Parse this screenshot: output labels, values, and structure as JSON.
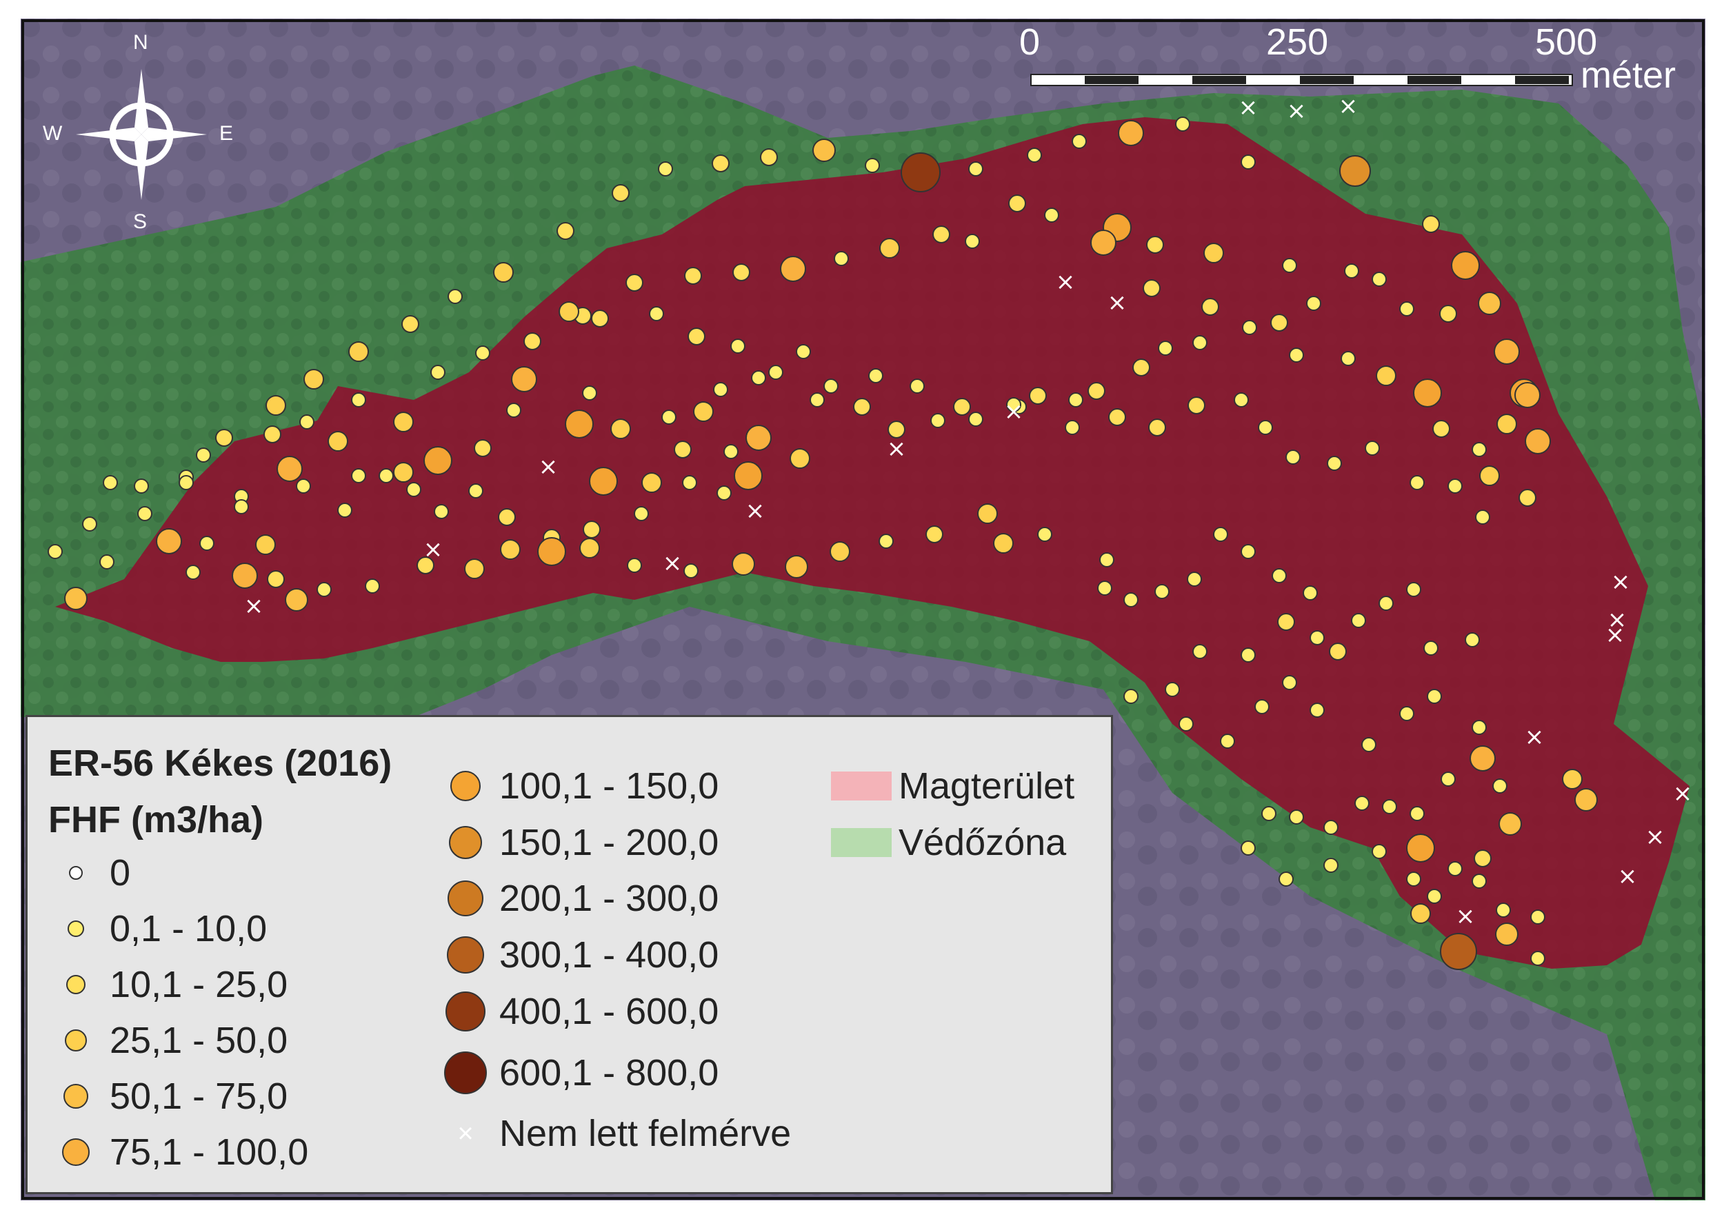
{
  "map": {
    "compass": {
      "n": "N",
      "e": "E",
      "s": "S",
      "w": "W"
    },
    "scale": {
      "ticks": [
        "0",
        "250",
        "500"
      ],
      "unit": "méter"
    }
  },
  "legend": {
    "title_line1": "ER-56 Kékes (2016)",
    "title_line2": "FHF (m3/ha)",
    "classes": [
      {
        "label": "0",
        "color": "#ffffff"
      },
      {
        "label": "0,1 - 10,0",
        "color": "#ffee6e"
      },
      {
        "label": "10,1 - 25,0",
        "color": "#ffdf5c"
      },
      {
        "label": "25,1 - 50,0",
        "color": "#fdd04e"
      },
      {
        "label": "50,1 - 75,0",
        "color": "#fbc046"
      },
      {
        "label": "75,1 - 100,0",
        "color": "#f9b13f"
      },
      {
        "label": "100,1 - 150,0",
        "color": "#f4a433"
      },
      {
        "label": "150,1 - 200,0",
        "color": "#e0902a"
      },
      {
        "label": "200,1 - 300,0",
        "color": "#cd7a22"
      },
      {
        "label": "300,1 - 400,0",
        "color": "#b65f1c"
      },
      {
        "label": "400,1 - 600,0",
        "color": "#8f3912"
      },
      {
        "label": "600,1 - 800,0",
        "color": "#6e1e0c"
      }
    ],
    "not_surveyed": "Nem lett felmérve",
    "core_area": {
      "label": "Magterület",
      "color": "#f4b3b8"
    },
    "buffer_zone": {
      "label": "Védőzóna",
      "color": "#b7dcae"
    }
  },
  "colors": {
    "core_fill": "#8e0f2e",
    "buffer_fill": "#3d7a42",
    "background": "#6e6585"
  }
}
